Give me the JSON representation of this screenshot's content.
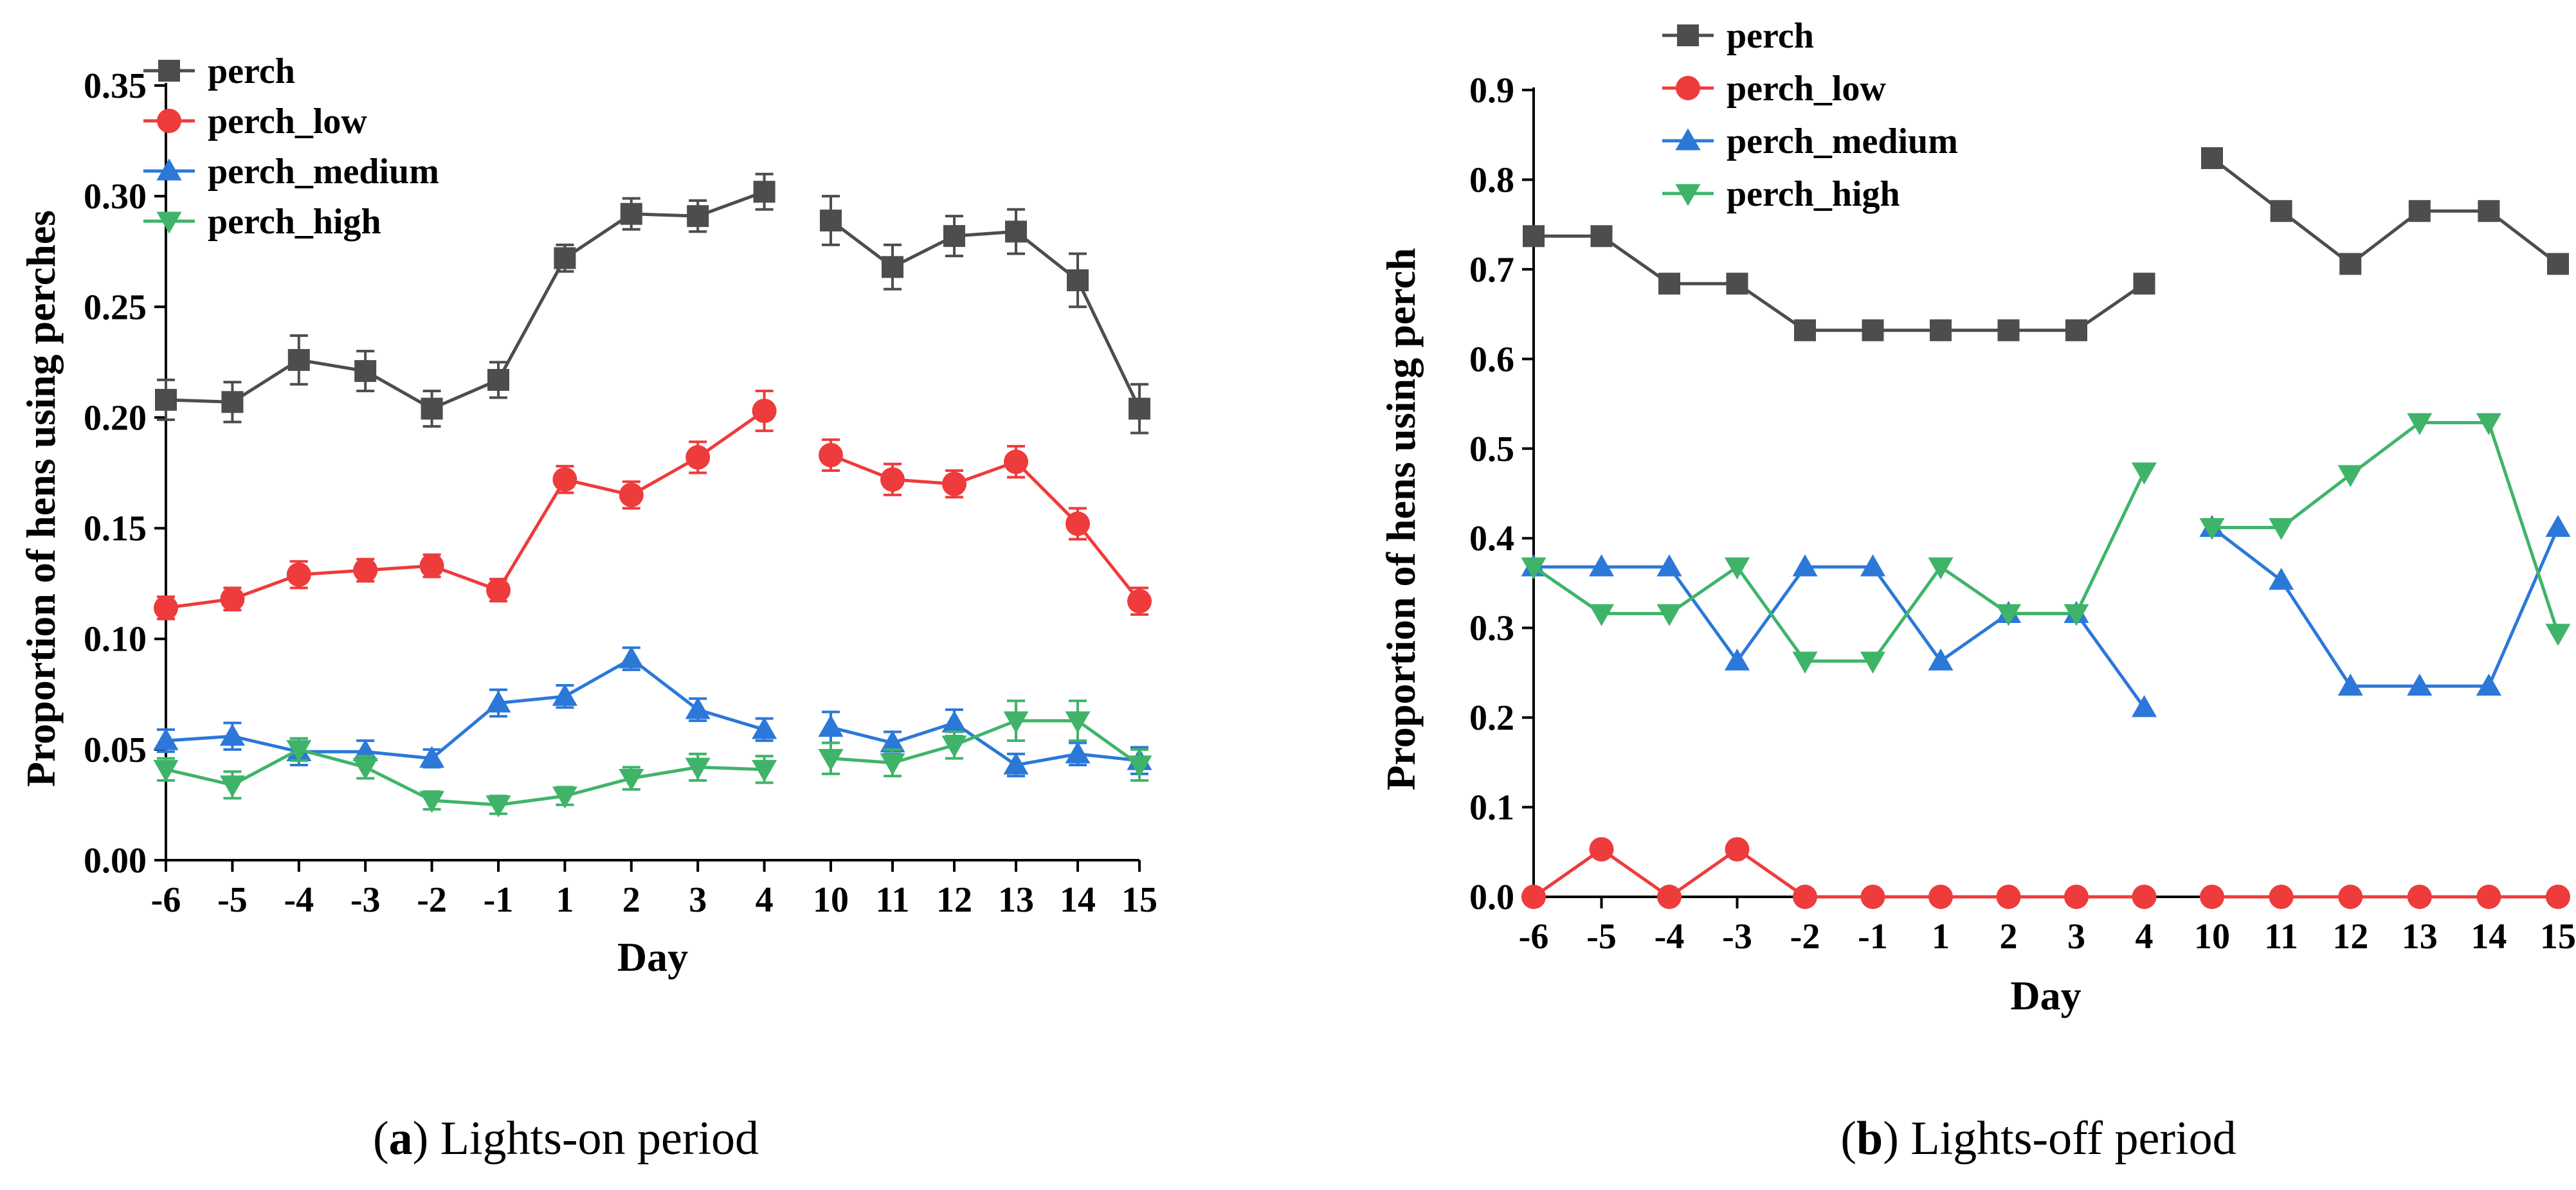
{
  "figure": {
    "colors": {
      "perch": "#4d4d4d",
      "perch_low": "#ee3b3b",
      "perch_medium": "#2b78d8",
      "perch_high": "#3fb469"
    }
  },
  "chart_data": [
    {
      "id": "a",
      "type": "line",
      "caption_letter": "a",
      "caption_text": " Lights-on period",
      "caption_open": "(",
      "caption_close": ")",
      "xlabel": "Day",
      "ylabel": "Proportion of hens using perches",
      "ylim": [
        0,
        0.35
      ],
      "yticks": [
        "0.00",
        "0.05",
        "0.10",
        "0.15",
        "0.20",
        "0.25",
        "0.30",
        "0.35"
      ],
      "categories": [
        "-6",
        "-5",
        "-4",
        "-3",
        "-2",
        "-1",
        "1",
        "2",
        "3",
        "4",
        "10",
        "11",
        "12",
        "13",
        "14",
        "15"
      ],
      "break_after_index": 9,
      "legend_position": "top-left",
      "error_bars": true,
      "series": [
        {
          "name": "perch",
          "marker": "square",
          "values": [
            0.208,
            0.207,
            0.226,
            0.221,
            0.204,
            0.217,
            0.272,
            0.292,
            0.291,
            0.302,
            0.289,
            0.268,
            0.282,
            0.284,
            0.262,
            0.204
          ],
          "errors": [
            0.009,
            0.009,
            0.011,
            0.009,
            0.008,
            0.008,
            0.006,
            0.007,
            0.007,
            0.008,
            0.011,
            0.01,
            0.009,
            0.01,
            0.012,
            0.011
          ]
        },
        {
          "name": "perch_low",
          "marker": "circle",
          "values": [
            0.114,
            0.118,
            0.129,
            0.131,
            0.133,
            0.122,
            0.172,
            0.165,
            0.182,
            0.203,
            0.183,
            0.172,
            0.17,
            0.18,
            0.152,
            0.117
          ],
          "errors": [
            0.005,
            0.005,
            0.006,
            0.005,
            0.005,
            0.005,
            0.006,
            0.006,
            0.007,
            0.009,
            0.007,
            0.007,
            0.006,
            0.007,
            0.007,
            0.006
          ]
        },
        {
          "name": "perch_medium",
          "marker": "triangle-up",
          "values": [
            0.054,
            0.056,
            0.049,
            0.049,
            0.046,
            0.071,
            0.074,
            0.091,
            0.068,
            0.059,
            0.06,
            0.053,
            0.062,
            0.043,
            0.048,
            0.045
          ],
          "errors": [
            0.005,
            0.006,
            0.006,
            0.005,
            0.004,
            0.006,
            0.005,
            0.005,
            0.005,
            0.005,
            0.007,
            0.005,
            0.006,
            0.005,
            0.005,
            0.006
          ]
        },
        {
          "name": "perch_high",
          "marker": "triangle-down",
          "values": [
            0.041,
            0.034,
            0.05,
            0.042,
            0.027,
            0.025,
            0.029,
            0.037,
            0.042,
            0.041,
            0.046,
            0.044,
            0.052,
            0.063,
            0.063,
            0.043
          ],
          "errors": [
            0.005,
            0.006,
            0.005,
            0.005,
            0.004,
            0.004,
            0.004,
            0.005,
            0.006,
            0.006,
            0.007,
            0.006,
            0.006,
            0.009,
            0.009,
            0.007
          ]
        }
      ]
    },
    {
      "id": "b",
      "type": "line",
      "caption_letter": "b",
      "caption_text": " Lights-off period",
      "caption_open": "(",
      "caption_close": ")",
      "xlabel": "Day",
      "ylabel": "Proportion of hens using perch",
      "ylim": [
        0,
        0.9
      ],
      "yticks": [
        "0.0",
        "0.1",
        "0.2",
        "0.3",
        "0.4",
        "0.5",
        "0.6",
        "0.7",
        "0.8",
        "0.9"
      ],
      "categories": [
        "-6",
        "-5",
        "-4",
        "-3",
        "-2",
        "-1",
        "1",
        "2",
        "3",
        "4",
        "10",
        "11",
        "12",
        "13",
        "14",
        "15"
      ],
      "break_after_index": 9,
      "legend_position": "top-left, above plot",
      "error_bars": false,
      "series": [
        {
          "name": "perch",
          "marker": "square",
          "values": [
            0.737,
            0.737,
            0.684,
            0.684,
            0.632,
            0.632,
            0.632,
            0.632,
            0.632,
            0.684,
            0.824,
            0.765,
            0.706,
            0.765,
            0.765,
            0.706
          ]
        },
        {
          "name": "perch_low",
          "marker": "circle",
          "values": [
            0.0,
            0.053,
            0.0,
            0.053,
            0.0,
            0.0,
            0.0,
            0.0,
            0.0,
            0.0,
            0.0,
            0.0,
            0.0,
            0.0,
            0.0,
            0.0
          ]
        },
        {
          "name": "perch_medium",
          "marker": "triangle-up",
          "values": [
            0.368,
            0.368,
            0.368,
            0.263,
            0.368,
            0.368,
            0.263,
            0.316,
            0.316,
            0.211,
            0.412,
            0.353,
            0.235,
            0.235,
            0.235,
            0.412
          ]
        },
        {
          "name": "perch_high",
          "marker": "triangle-down",
          "values": [
            0.368,
            0.316,
            0.316,
            0.368,
            0.263,
            0.263,
            0.368,
            0.316,
            0.316,
            0.474,
            0.412,
            0.412,
            0.471,
            0.529,
            0.529,
            0.294
          ]
        }
      ]
    }
  ]
}
